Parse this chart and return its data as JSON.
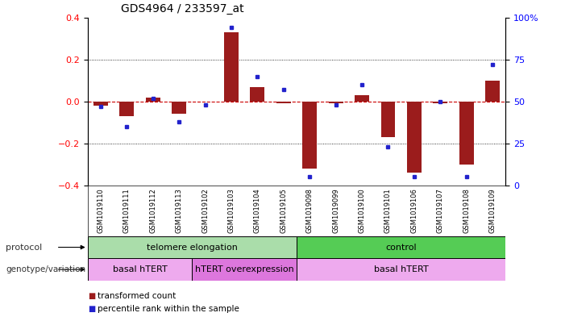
{
  "title": "GDS4964 / 233597_at",
  "samples": [
    "GSM1019110",
    "GSM1019111",
    "GSM1019112",
    "GSM1019113",
    "GSM1019102",
    "GSM1019103",
    "GSM1019104",
    "GSM1019105",
    "GSM1019098",
    "GSM1019099",
    "GSM1019100",
    "GSM1019101",
    "GSM1019106",
    "GSM1019107",
    "GSM1019108",
    "GSM1019109"
  ],
  "transformed_count": [
    -0.02,
    -0.07,
    0.02,
    -0.06,
    0.0,
    0.33,
    0.07,
    -0.01,
    -0.32,
    -0.01,
    0.03,
    -0.17,
    -0.34,
    -0.01,
    -0.3,
    0.1
  ],
  "percentile_rank": [
    47,
    35,
    52,
    38,
    48,
    94,
    65,
    57,
    5,
    48,
    60,
    23,
    5,
    50,
    5,
    72
  ],
  "ylim_left": [
    -0.4,
    0.4
  ],
  "ylim_right": [
    0,
    100
  ],
  "yticks_left": [
    -0.4,
    -0.2,
    0.0,
    0.2,
    0.4
  ],
  "yticks_right": [
    0,
    25,
    50,
    75,
    100
  ],
  "bar_color": "#9b1c1c",
  "dot_color": "#2222cc",
  "zero_line_color": "#cc0000",
  "grid_color": "#000000",
  "bg_color": "#ffffff",
  "protocol_groups": [
    {
      "label": "telomere elongation",
      "start": 0,
      "end": 8,
      "color": "#aaddaa"
    },
    {
      "label": "control",
      "start": 8,
      "end": 16,
      "color": "#55cc55"
    }
  ],
  "genotype_groups": [
    {
      "label": "basal hTERT",
      "start": 0,
      "end": 4,
      "color": "#eeaaee"
    },
    {
      "label": "hTERT overexpression",
      "start": 4,
      "end": 8,
      "color": "#dd77dd"
    },
    {
      "label": "basal hTERT",
      "start": 8,
      "end": 16,
      "color": "#eeaaee"
    }
  ],
  "xlabel_protocol": "protocol",
  "xlabel_genotype": "genotype/variation",
  "legend_red": "transformed count",
  "legend_blue": "percentile rank within the sample",
  "sample_area_color": "#cccccc",
  "left_label_color": "#333333"
}
